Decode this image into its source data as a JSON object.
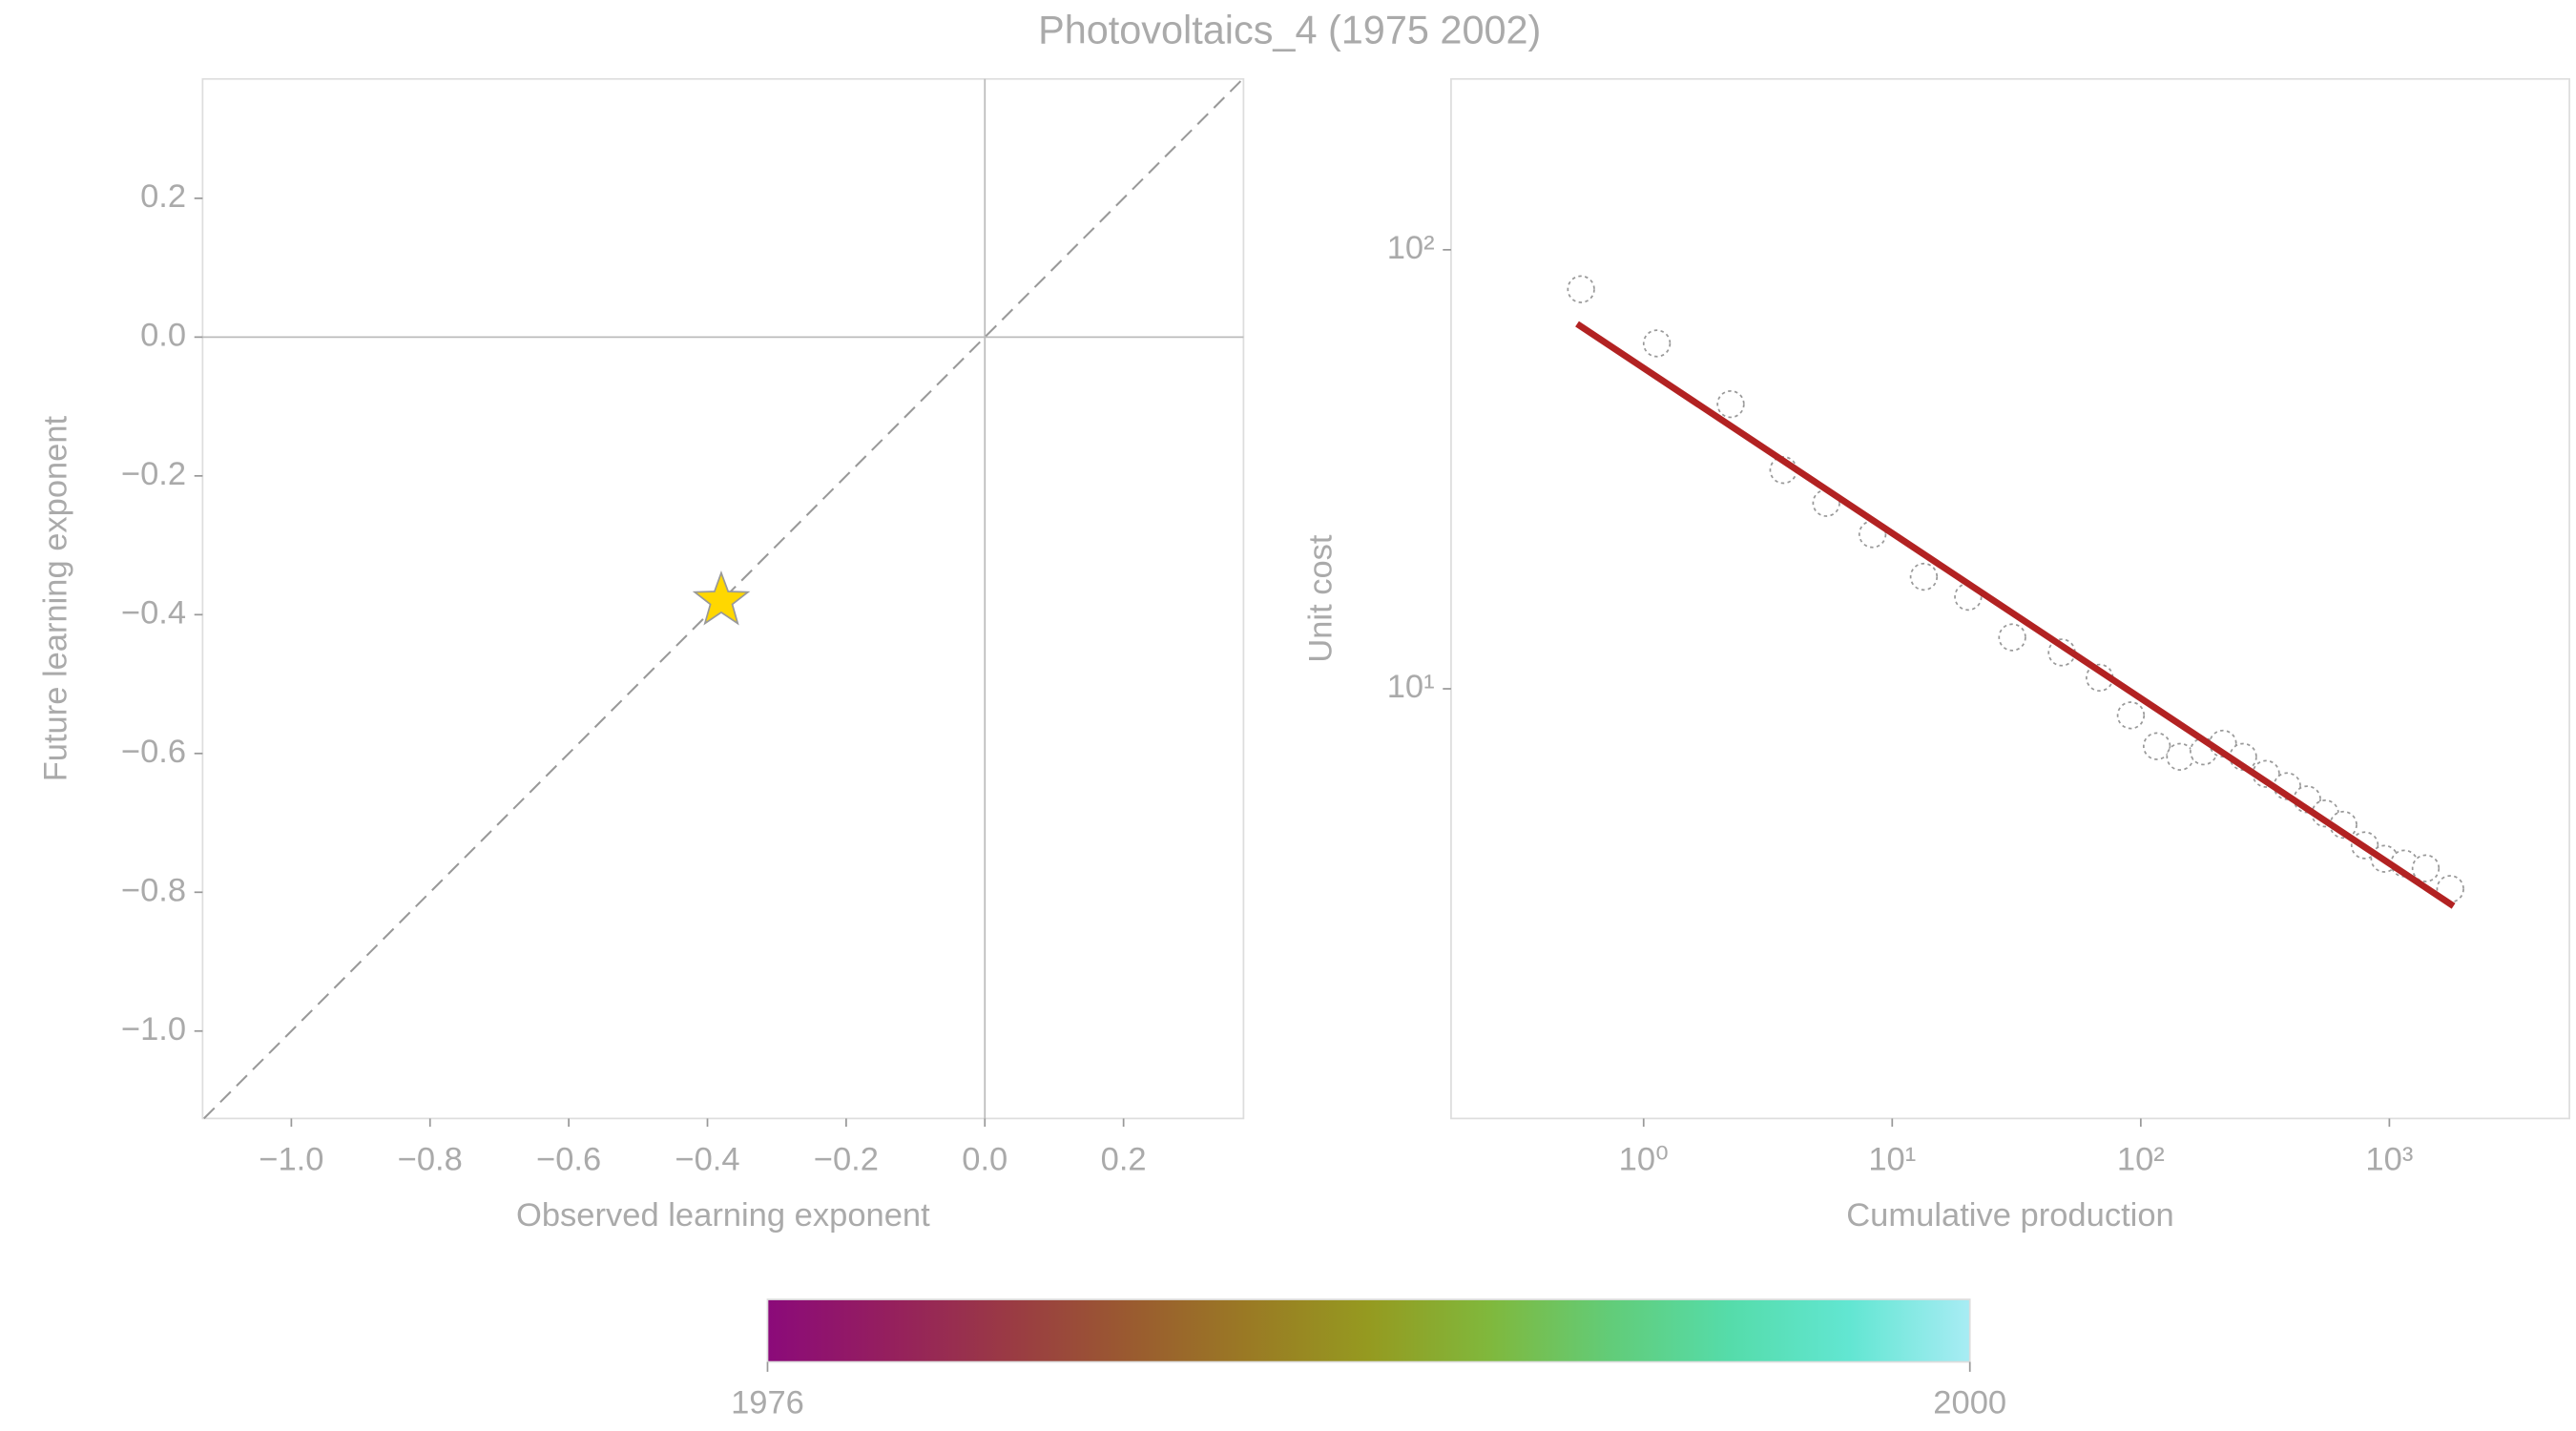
{
  "title": "Photovoltaics_4 (1975 2002)",
  "chart_data": [
    {
      "type": "scatter",
      "xlabel": "Observed learning exponent",
      "ylabel": "Future learning exponent",
      "xlim": [
        -1.128,
        0.373
      ],
      "ylim": [
        -1.126,
        0.372
      ],
      "xticks": [
        {
          "value": -1.0,
          "label": "−1.0"
        },
        {
          "value": -0.8,
          "label": "−0.8"
        },
        {
          "value": -0.6,
          "label": "−0.6"
        },
        {
          "value": -0.4,
          "label": "−0.4"
        },
        {
          "value": -0.2,
          "label": "−0.2"
        },
        {
          "value": 0,
          "label": "0.0"
        },
        0.2
      ],
      "yticks": [
        0.2,
        {
          "value": 0,
          "label": "0.0"
        },
        {
          "value": -0.2,
          "label": "−0.2"
        },
        {
          "value": -0.4,
          "label": "−0.4"
        },
        {
          "value": -0.6,
          "label": "−0.6"
        },
        {
          "value": -0.8,
          "label": "−0.8"
        },
        {
          "value": -1.0,
          "label": "−1.0"
        }
      ],
      "diagonal": true,
      "zero_lines": true,
      "series": [
        {
          "marker": "star",
          "color": "#ffd700",
          "x": [
            -0.38
          ],
          "values": [
            -0.38
          ]
        }
      ]
    },
    {
      "type": "scatter",
      "xlabel": "Cumulative production",
      "ylabel": "Unit cost",
      "xscale": "log",
      "yscale": "log",
      "xlim": [
        0.168,
        5300
      ],
      "ylim": [
        1.05,
        245
      ],
      "xticks": [
        {
          "value": 1,
          "label": "10⁰"
        },
        {
          "value": 10,
          "label": "10¹"
        },
        {
          "value": 100,
          "label": "10²"
        },
        {
          "value": 1000,
          "label": "10³"
        }
      ],
      "yticks": [
        {
          "value": 10,
          "label": "10¹"
        },
        {
          "value": 100,
          "label": "10²"
        }
      ],
      "series": [
        {
          "marker": "circle",
          "color": "#ffffff",
          "x": [
            0.56,
            1.13,
            2.24,
            3.65,
            5.43,
            8.33,
            13.4,
            20.2,
            30.4,
            48.1,
            68.3,
            91.2,
            116,
            144,
            179,
            214,
            258,
            319,
            388,
            467,
            552,
            653,
            796,
            955,
            1148,
            1400,
            1758
          ],
          "values": [
            81.3,
            61.2,
            44.5,
            31.5,
            26.5,
            22.5,
            18.0,
            16.2,
            13.1,
            12.1,
            10.6,
            8.7,
            7.4,
            7.0,
            7.2,
            7.5,
            7.0,
            6.4,
            6.0,
            5.6,
            5.2,
            4.9,
            4.4,
            4.1,
            4.0,
            3.9,
            3.5
          ]
        },
        {
          "marker": "line",
          "color": "#b22222",
          "x": [
            0.54,
            1811
          ],
          "values": [
            67.8,
            3.2
          ]
        }
      ]
    }
  ],
  "colorbar": {
    "lim": [
      1976,
      2000
    ],
    "ticks": [
      1976,
      2000
    ],
    "colors": [
      "#8b0a7a",
      "#951f5e",
      "#9a3a44",
      "#9a5a30",
      "#9a7a24",
      "#959a20",
      "#80b83c",
      "#62cc78",
      "#55dcaa",
      "#62e6d2",
      "#a8ecf4"
    ]
  }
}
